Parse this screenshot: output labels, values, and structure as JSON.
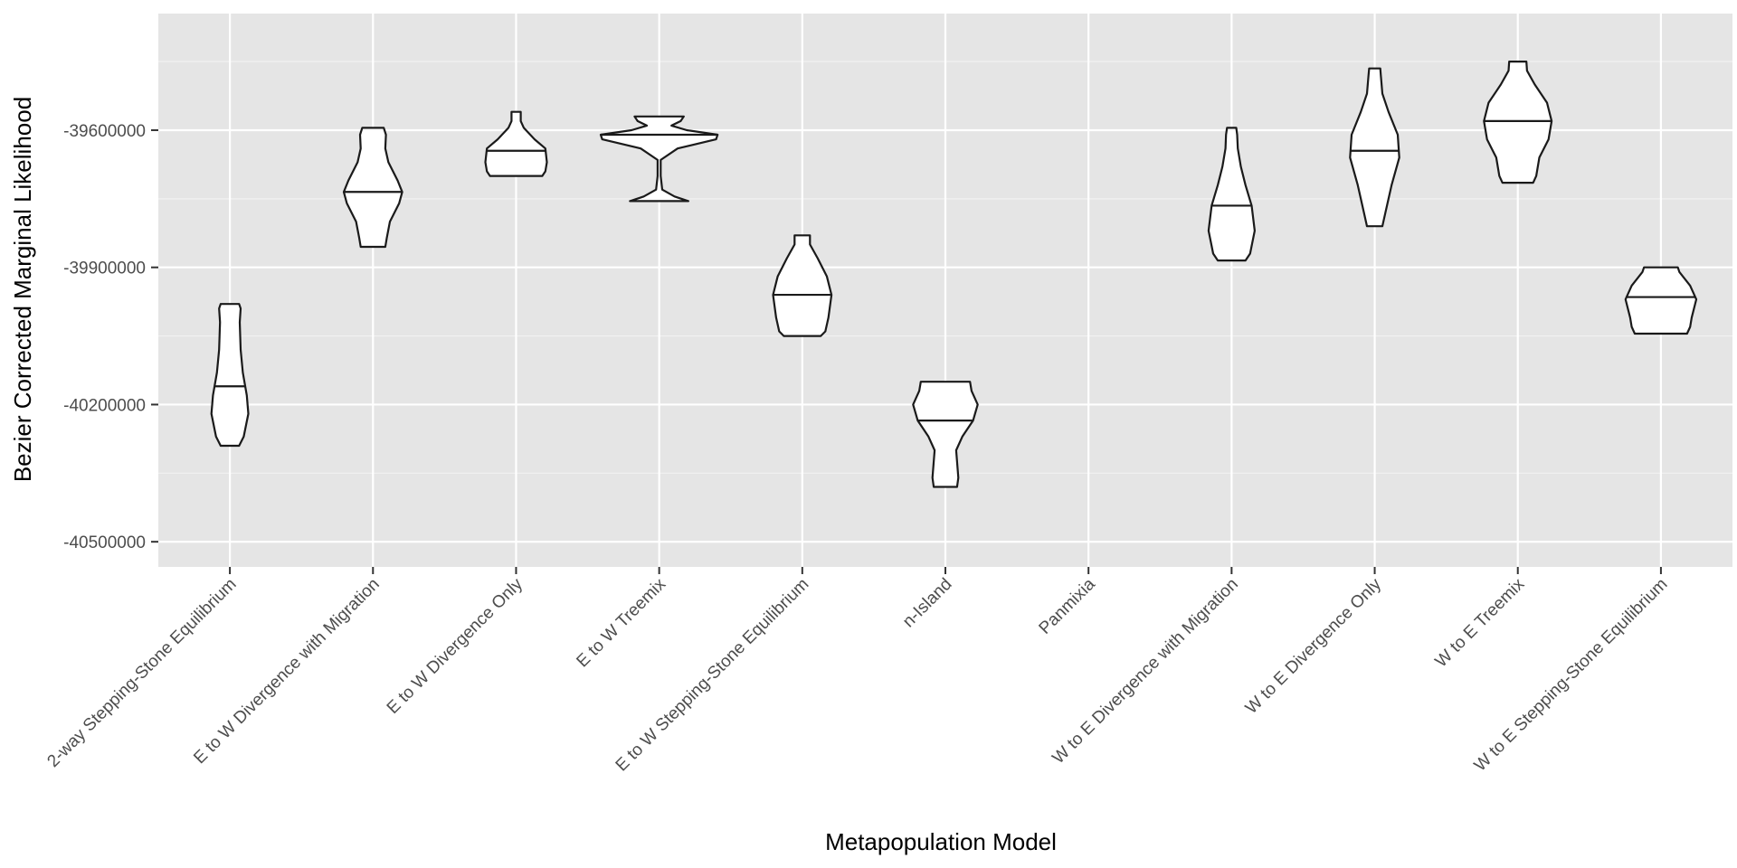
{
  "chart_data": {
    "type": "violin",
    "xlabel": "Metapopulation Model",
    "ylabel": "Bezier Corrected Marginal Likelihood",
    "ylim": [
      -40555000,
      -39345000
    ],
    "yticks": [
      -39600000,
      -39900000,
      -40200000,
      -40500000
    ],
    "ytick_labels": [
      "-39600000",
      "-39900000",
      "-40200000",
      "-40500000"
    ],
    "categories": [
      "2-way Stepping-Stone Equilibrium",
      "E to W Divergence with Migration",
      "E to W Divergence Only",
      "E to W Treemix",
      "E to W Stepping-Stone Equilibrium",
      "n-Island",
      "Panmixia",
      "W to E Divergence with Migration",
      "W to E Divergence Only",
      "W to E Treemix",
      "W to E Stepping-Stone Equilibrium"
    ],
    "violins": [
      {
        "min": -40290000,
        "max": -39980000,
        "median": -40160000,
        "profile": [
          [
            -40290000,
            0.3
          ],
          [
            -40270000,
            0.45
          ],
          [
            -40220000,
            0.6
          ],
          [
            -40180000,
            0.55
          ],
          [
            -40130000,
            0.42
          ],
          [
            -40080000,
            0.35
          ],
          [
            -40020000,
            0.32
          ],
          [
            -39990000,
            0.35
          ],
          [
            -39980000,
            0.3
          ]
        ]
      },
      {
        "min": -39855000,
        "max": -39595000,
        "median": -39735000,
        "profile": [
          [
            -39855000,
            0.4
          ],
          [
            -39835000,
            0.45
          ],
          [
            -39800000,
            0.55
          ],
          [
            -39760000,
            0.85
          ],
          [
            -39735000,
            0.95
          ],
          [
            -39710000,
            0.8
          ],
          [
            -39670000,
            0.5
          ],
          [
            -39640000,
            0.4
          ],
          [
            -39610000,
            0.42
          ],
          [
            -39595000,
            0.35
          ]
        ]
      },
      {
        "min": -39700000,
        "max": -39560000,
        "median": -39645000,
        "profile": [
          [
            -39700000,
            0.85
          ],
          [
            -39690000,
            0.95
          ],
          [
            -39670000,
            1.0
          ],
          [
            -39640000,
            0.95
          ],
          [
            -39620000,
            0.6
          ],
          [
            -39595000,
            0.25
          ],
          [
            -39580000,
            0.15
          ],
          [
            -39560000,
            0.15
          ]
        ]
      },
      {
        "min": -39755000,
        "max": -39570000,
        "median": -39610000,
        "profile": [
          [
            -39755000,
            0.95
          ],
          [
            -39745000,
            0.5
          ],
          [
            -39730000,
            0.1
          ],
          [
            -39700000,
            0.05
          ],
          [
            -39665000,
            0.05
          ],
          [
            -39640000,
            0.6
          ],
          [
            -39620000,
            1.85
          ],
          [
            -39610000,
            1.9
          ],
          [
            -39600000,
            0.9
          ],
          [
            -39590000,
            0.4
          ],
          [
            -39580000,
            0.7
          ],
          [
            -39570000,
            0.8
          ]
        ]
      },
      {
        "min": -40050000,
        "max": -39830000,
        "median": -39960000,
        "profile": [
          [
            -40050000,
            0.6
          ],
          [
            -40040000,
            0.75
          ],
          [
            -40010000,
            0.85
          ],
          [
            -39960000,
            0.95
          ],
          [
            -39920000,
            0.8
          ],
          [
            -39880000,
            0.5
          ],
          [
            -39850000,
            0.25
          ],
          [
            -39830000,
            0.25
          ]
        ]
      },
      {
        "min": -40380000,
        "max": -40150000,
        "median": -40235000,
        "profile": [
          [
            -40380000,
            0.38
          ],
          [
            -40360000,
            0.42
          ],
          [
            -40300000,
            0.35
          ],
          [
            -40270000,
            0.55
          ],
          [
            -40235000,
            0.9
          ],
          [
            -40200000,
            1.05
          ],
          [
            -40170000,
            0.85
          ],
          [
            -40150000,
            0.8
          ]
        ]
      },
      null,
      {
        "min": -39885000,
        "max": -39595000,
        "median": -39765000,
        "profile": [
          [
            -39885000,
            0.45
          ],
          [
            -39870000,
            0.6
          ],
          [
            -39820000,
            0.75
          ],
          [
            -39765000,
            0.65
          ],
          [
            -39720000,
            0.45
          ],
          [
            -39680000,
            0.3
          ],
          [
            -39640000,
            0.2
          ],
          [
            -39610000,
            0.18
          ],
          [
            -39595000,
            0.15
          ]
        ]
      },
      {
        "min": -39810000,
        "max": -39465000,
        "median": -39645000,
        "profile": [
          [
            -39810000,
            0.25
          ],
          [
            -39780000,
            0.35
          ],
          [
            -39720000,
            0.55
          ],
          [
            -39660000,
            0.8
          ],
          [
            -39610000,
            0.75
          ],
          [
            -39560000,
            0.45
          ],
          [
            -39520000,
            0.25
          ],
          [
            -39480000,
            0.2
          ],
          [
            -39465000,
            0.18
          ]
        ]
      },
      {
        "min": -39715000,
        "max": -39450000,
        "median": -39580000,
        "profile": [
          [
            -39715000,
            0.5
          ],
          [
            -39700000,
            0.6
          ],
          [
            -39660000,
            0.7
          ],
          [
            -39620000,
            1.0
          ],
          [
            -39580000,
            1.1
          ],
          [
            -39540000,
            0.95
          ],
          [
            -39500000,
            0.55
          ],
          [
            -39470000,
            0.3
          ],
          [
            -39450000,
            0.28
          ]
        ]
      },
      {
        "min": -40045000,
        "max": -39900000,
        "median": -39965000,
        "profile": [
          [
            -40045000,
            0.85
          ],
          [
            -40030000,
            0.95
          ],
          [
            -40010000,
            1.0
          ],
          [
            -39970000,
            1.15
          ],
          [
            -39940000,
            0.95
          ],
          [
            -39910000,
            0.6
          ],
          [
            -39900000,
            0.55
          ]
        ]
      }
    ]
  }
}
